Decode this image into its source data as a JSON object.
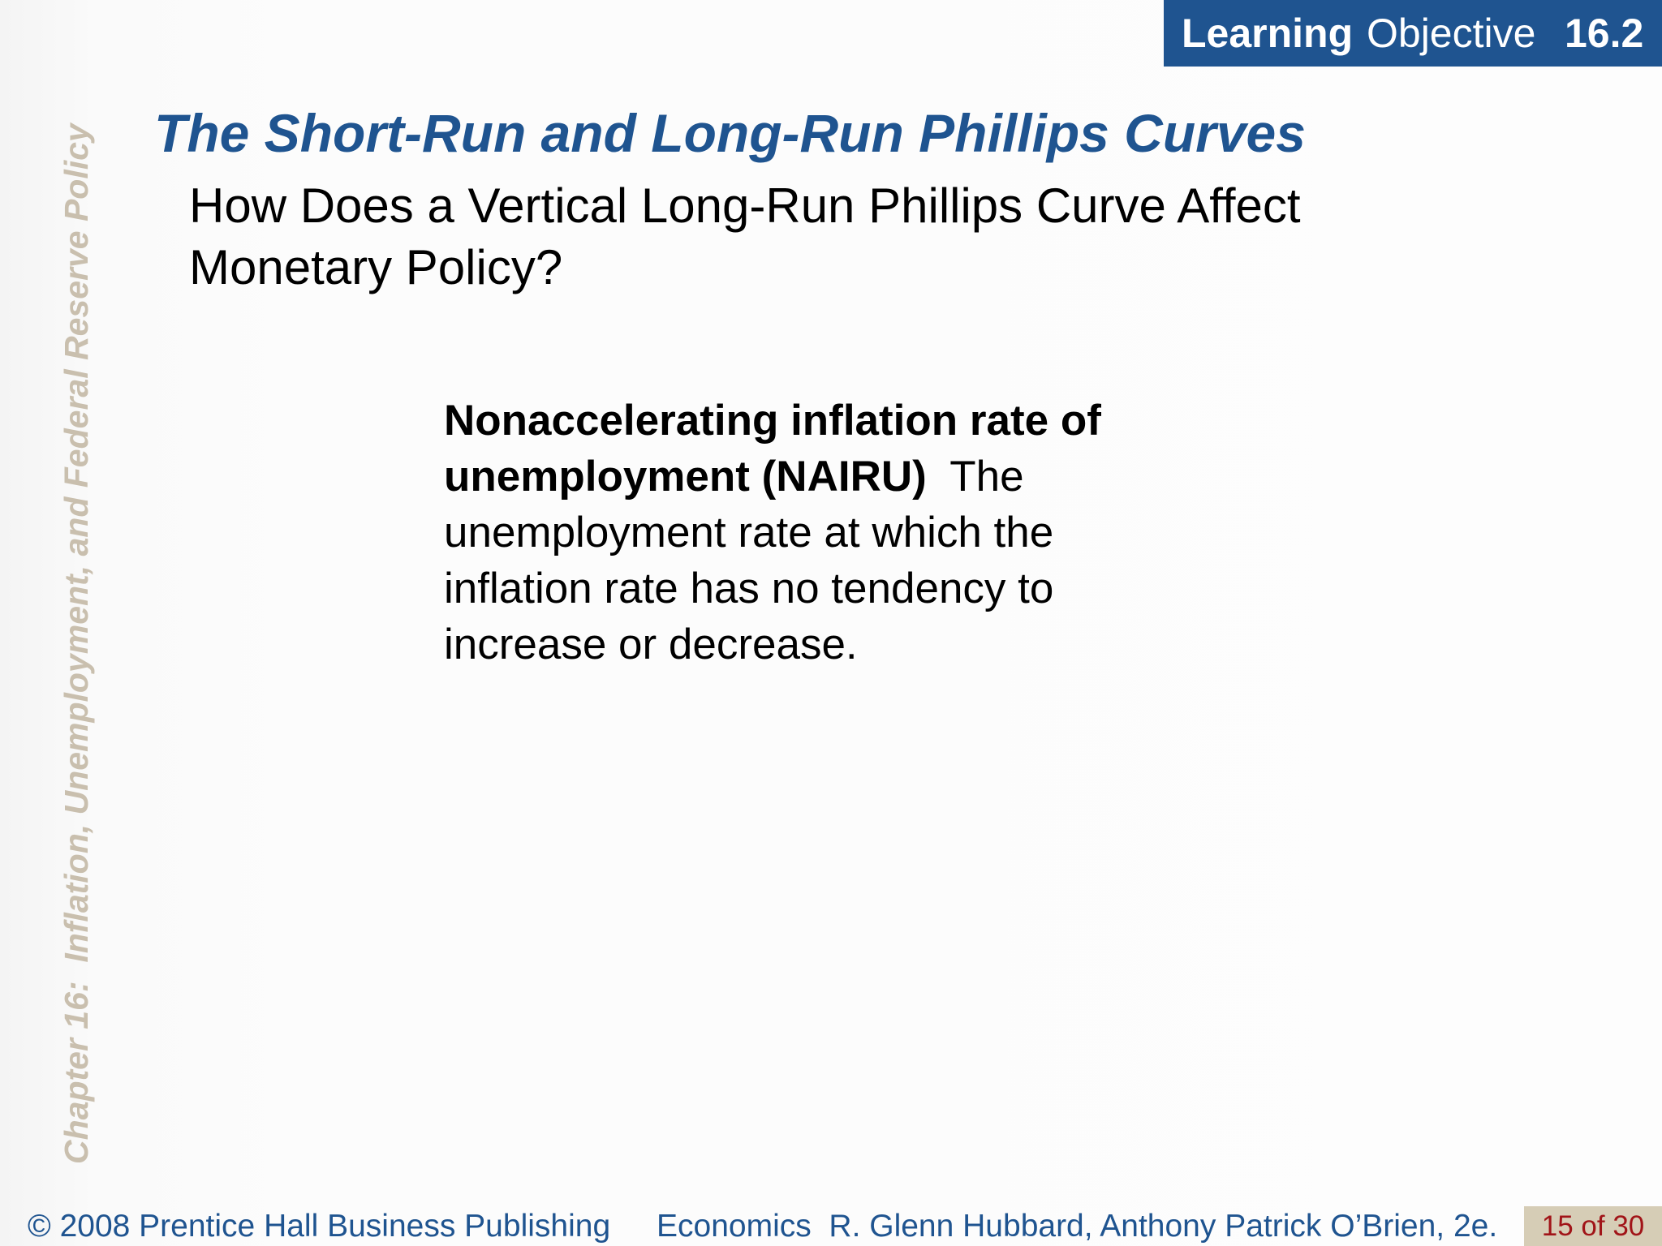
{
  "learning_objective": {
    "label_bold": "Learning",
    "label_regular": "Objective",
    "number": "16.2"
  },
  "sidebar": {
    "chapter_text": "Chapter 16:  Inflation, Unemployment, and Federal Reserve Policy"
  },
  "slide": {
    "title": "The Short-Run and Long-Run Phillips Curves",
    "subheading": "How Does a Vertical Long-Run Phillips Curve Affect Monetary Policy?",
    "definition": {
      "term": "Nonaccelerating inflation rate of unemployment (NAIRU)",
      "text": "The unemployment rate at which the inflation rate has no tendency to increase or decrease."
    }
  },
  "footer": {
    "copyright": "© 2008 Prentice Hall Business Publishing",
    "book": "Economics  R. Glenn Hubbard, Anthony Patrick O’Brien, 2e.",
    "page": "15 of 30"
  },
  "colors": {
    "brand_blue": "#1f5490",
    "sidebar_tan": "#c9bfae",
    "page_box_bg": "#d6cdb6",
    "page_number_red": "#a11418"
  }
}
